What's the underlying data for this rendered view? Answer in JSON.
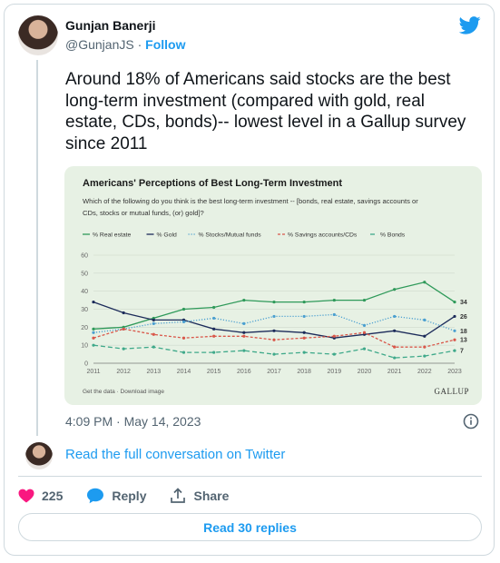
{
  "author": {
    "name": "Gunjan Banerji",
    "handle": "@GunjanJS",
    "separator": " · ",
    "follow_label": "Follow"
  },
  "tweet": {
    "line1": "Around 18% of Americans said stocks are the best",
    "line2": "long-term investment (compared with gold, real",
    "line3": "estate, CDs, bonds)-- lowest level in a Gallup survey",
    "line4": "since 2011"
  },
  "timestamp": "4:09 PM · May 14, 2023",
  "read_conversation": "Read the full conversation on Twitter",
  "actions": {
    "like_count": "225",
    "reply_label": "Reply",
    "share_label": "Share"
  },
  "read_replies": "Read 30 replies",
  "chart_data": {
    "type": "line",
    "title": "Americans' Perceptions of Best Long-Term Investment",
    "subtitle_line1": "Which of the following do you think is the best long-term investment -- [bonds, real estate, savings accounts or",
    "subtitle_line2": "CDs, stocks or mutual funds, (or) gold]?",
    "x": [
      "2011",
      "2012",
      "2013",
      "2014",
      "2015",
      "2016",
      "2017",
      "2018",
      "2019",
      "2020",
      "2021",
      "2022",
      "2023"
    ],
    "yticks": [
      "0",
      "10",
      "20",
      "30",
      "40",
      "50",
      "60"
    ],
    "ylim": [
      0,
      60
    ],
    "series": [
      {
        "name": "% Real estate",
        "color": "#2f9a5a",
        "dash": "solid",
        "values": [
          19,
          20,
          25,
          30,
          31,
          35,
          34,
          34,
          35,
          35,
          41,
          45,
          34
        ],
        "end_label": "34"
      },
      {
        "name": "% Gold",
        "color": "#1c2b5a",
        "dash": "solid",
        "values": [
          34,
          28,
          24,
          24,
          19,
          17,
          18,
          17,
          14,
          16,
          18,
          15,
          26
        ],
        "end_label": "26"
      },
      {
        "name": "% Stocks/Mutual funds",
        "color": "#4a9fd0",
        "dash": "dotted",
        "values": [
          17,
          19,
          22,
          23,
          25,
          22,
          26,
          26,
          27,
          21,
          26,
          24,
          18
        ],
        "end_label": "18"
      },
      {
        "name": "% Savings accounts/CDs",
        "color": "#d9574a",
        "dash": "dashed",
        "values": [
          14,
          19,
          16,
          14,
          15,
          15,
          13,
          14,
          15,
          17,
          9,
          9,
          13
        ],
        "end_label": "13"
      },
      {
        "name": "% Bonds",
        "color": "#3fa98a",
        "dash": "longdash",
        "values": [
          10,
          8,
          9,
          6,
          6,
          7,
          5,
          6,
          5,
          8,
          3,
          4,
          7
        ],
        "end_label": "7"
      }
    ],
    "footer_left": "Get the data · Download image",
    "footer_right": "GALLUP",
    "grid": true,
    "legend_position": "top"
  },
  "colors": {
    "accent": "#1d9bf0",
    "heart": "#f91880",
    "chart_bg": "#e7f1e4"
  }
}
